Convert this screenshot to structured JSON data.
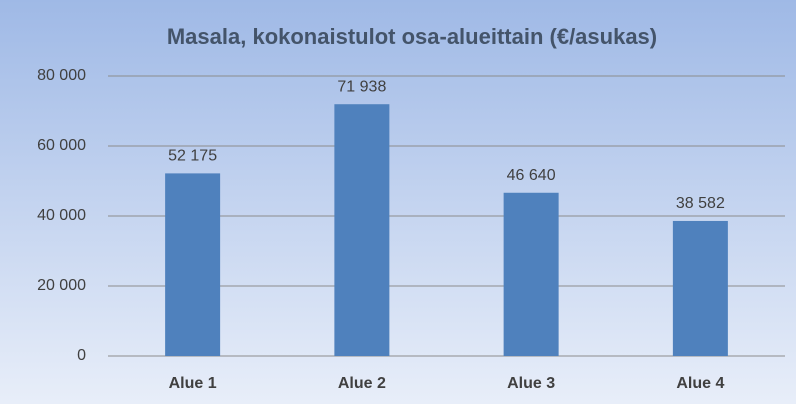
{
  "chart_data": {
    "type": "bar",
    "title": "Masala, kokonaistulot osa-alueittain (€/asukas)",
    "categories": [
      "Alue 1",
      "Alue 2",
      "Alue 3",
      "Alue 4"
    ],
    "values": [
      52175,
      71938,
      46640,
      38582
    ],
    "value_labels": [
      "52 175",
      "71 938",
      "46 640",
      "38 582"
    ],
    "color": "#4f81bd",
    "ylim": [
      0,
      80000
    ],
    "yticks": [
      0,
      {
        "value": 20000,
        "label": "20 000"
      },
      {
        "value": 40000,
        "label": "40 000"
      },
      {
        "value": 60000,
        "label": "60 000"
      },
      {
        "value": 80000,
        "label": "80 000"
      }
    ],
    "grid": true
  }
}
